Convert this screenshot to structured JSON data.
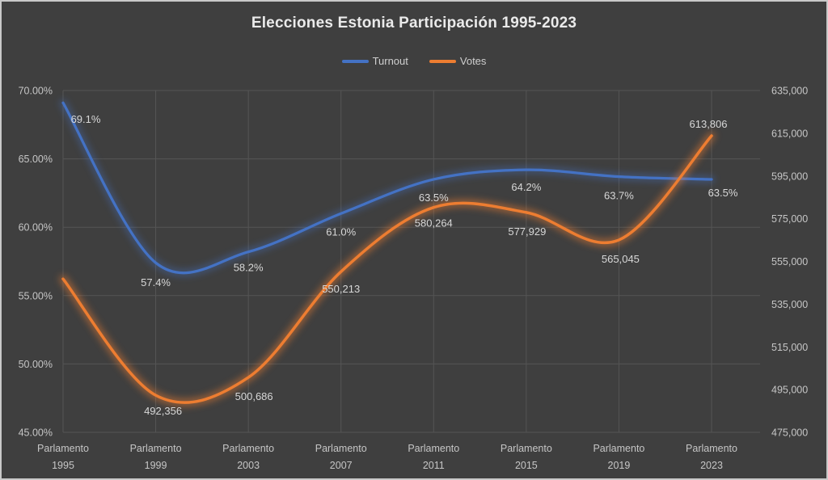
{
  "title": "Elecciones Estonia Participación 1995-2023",
  "legend": [
    {
      "label": "Turnout",
      "color": "#4472c4"
    },
    {
      "label": "Votes",
      "color": "#ed7d31"
    }
  ],
  "colors": {
    "background": "#3f3f3f",
    "border": "#c9c9c9",
    "gridline": "#555555",
    "axis_text": "#c6c6c6",
    "data_label_text": "#d8d8d8",
    "turnout_line": "#4472c4",
    "votes_line": "#ed7d31"
  },
  "chart_data": {
    "type": "line",
    "smooth": true,
    "grid": true,
    "legend_position": "top",
    "title": "Elecciones Estonia Participación 1995-2023",
    "categories": [
      "Parlamento 1995",
      "Parlamento 1999",
      "Parlamento 2003",
      "Parlamento 2007",
      "Parlamento 2011",
      "Parlamento 2015",
      "Parlamento 2019",
      "Parlamento 2023"
    ],
    "category_line1": "Parlamento",
    "category_years": [
      "1995",
      "1999",
      "2003",
      "2007",
      "2011",
      "2015",
      "2019",
      "2023"
    ],
    "series": [
      {
        "name": "Turnout",
        "axis": "left",
        "color": "#4472c4",
        "values": [
          69.1,
          57.4,
          58.2,
          61.0,
          63.5,
          64.2,
          63.7,
          63.5
        ],
        "labels": [
          "69.1%",
          "57.4%",
          "58.2%",
          "61.0%",
          "63.5%",
          "64.2%",
          "63.7%",
          "63.5%"
        ]
      },
      {
        "name": "Votes",
        "axis": "right",
        "color": "#ed7d31",
        "values": [
          546800,
          492356,
          500686,
          550213,
          580264,
          577929,
          565045,
          613806
        ],
        "labels": [
          null,
          "492,356",
          "500,686",
          "550,213",
          "580,264",
          "577,929",
          "565,045",
          "613,806"
        ],
        "note": "first point has no visible data label; value estimated from gridlines"
      }
    ],
    "left_axis": {
      "min": 45,
      "max": 70,
      "step": 5,
      "tick_labels_top_to_bottom": [
        "70.00%",
        "65.00%",
        "60.00%",
        "55.00%",
        "50.00%",
        "45.00%"
      ]
    },
    "right_axis": {
      "min": 475000,
      "max": 635000,
      "step": 20000,
      "tick_labels_top_to_bottom": [
        "635,000",
        "615,000",
        "595,000",
        "575,000",
        "555,000",
        "535,000",
        "515,000",
        "495,000",
        "475,000"
      ]
    }
  }
}
